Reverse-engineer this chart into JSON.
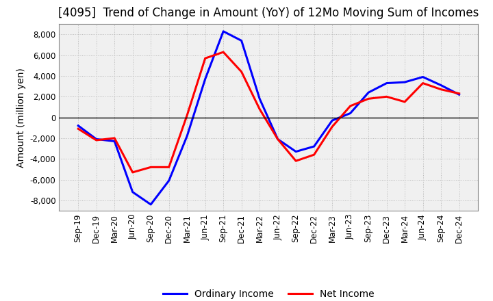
{
  "title": "[4095]  Trend of Change in Amount (YoY) of 12Mo Moving Sum of Incomes",
  "ylabel": "Amount (million yen)",
  "xlabel": "",
  "x_labels": [
    "Sep-19",
    "Dec-19",
    "Mar-20",
    "Jun-20",
    "Sep-20",
    "Dec-20",
    "Mar-21",
    "Jun-21",
    "Sep-21",
    "Dec-21",
    "Mar-22",
    "Jun-22",
    "Sep-22",
    "Dec-22",
    "Mar-23",
    "Jun-23",
    "Sep-23",
    "Dec-23",
    "Mar-24",
    "Jun-24",
    "Sep-24",
    "Dec-24"
  ],
  "ordinary_income": [
    -800,
    -2100,
    -2300,
    -7200,
    -8400,
    -6100,
    -1800,
    3700,
    8300,
    7400,
    1800,
    -2100,
    -3300,
    -2800,
    -300,
    400,
    2400,
    3300,
    3400,
    3900,
    3100,
    2200
  ],
  "net_income": [
    -1100,
    -2200,
    -2000,
    -5300,
    -4800,
    -4800,
    200,
    5700,
    6300,
    4400,
    800,
    -2100,
    -4200,
    -3600,
    -900,
    1100,
    1800,
    2000,
    1500,
    3300,
    2700,
    2300
  ],
  "ordinary_income_color": "#0000FF",
  "net_income_color": "#FF0000",
  "background_color": "#FFFFFF",
  "plot_background_color": "#F0F0F0",
  "grid_color": "#BBBBBB",
  "ylim": [
    -9000,
    9000
  ],
  "yticks": [
    -8000,
    -6000,
    -4000,
    -2000,
    0,
    2000,
    4000,
    6000,
    8000
  ],
  "line_width": 2.2,
  "legend_ordinary": "Ordinary Income",
  "legend_net": "Net Income",
  "title_fontsize": 12,
  "axis_fontsize": 10,
  "tick_fontsize": 8.5
}
